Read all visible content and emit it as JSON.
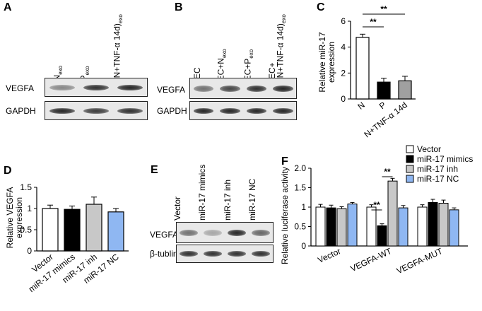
{
  "panels": {
    "A": {
      "letter": "A",
      "lanes": [
        "N",
        "P",
        "(N+TNF-α 14d)"
      ],
      "lane_sub": "exo",
      "rows": [
        "VEGFA",
        "GAPDH"
      ],
      "band_intensity": {
        "VEGFA": [
          0.45,
          0.85,
          0.9
        ],
        "GAPDH": [
          0.9,
          0.8,
          0.85
        ]
      }
    },
    "B": {
      "letter": "B",
      "lane_main": [
        "EC",
        "EC+N",
        "EC+P",
        "EC+",
        "(N+TNF-α 14d)"
      ],
      "lane_sub": "exo",
      "rows": [
        "VEGFA",
        "GAPDH"
      ],
      "band_intensity": {
        "VEGFA": [
          0.55,
          0.75,
          0.85,
          0.9
        ],
        "GAPDH": [
          0.9,
          0.9,
          0.9,
          0.9
        ]
      }
    },
    "E": {
      "letter": "E",
      "lanes": [
        "Vector",
        "miR-17 mimics",
        "miR-17 inh",
        "miR-17 NC"
      ],
      "rows": [
        "VEGFA",
        "β-tublin"
      ],
      "band_intensity": {
        "VEGFA": [
          0.55,
          0.3,
          0.9,
          0.6
        ],
        "β-tublin": [
          0.85,
          0.85,
          0.85,
          0.85
        ]
      }
    }
  },
  "colors": {
    "white": "#ffffff",
    "black": "#000000",
    "gray": "#c8c8c8",
    "blue": "#8fb7f2",
    "darkgray": "#a0a0a0"
  },
  "chart_data": [
    {
      "panel": "C",
      "type": "bar",
      "ylabel": "Relative miR-17 expression",
      "ylabel_lines": [
        "Relative miR-17",
        "expression"
      ],
      "categories": [
        "N",
        "P",
        "N+TNF-α 14d"
      ],
      "values": [
        4.75,
        1.3,
        1.4
      ],
      "errors": [
        0.25,
        0.3,
        0.35
      ],
      "bar_colors": [
        "#ffffff",
        "#000000",
        "#a0a0a0"
      ],
      "ylim": [
        0,
        6
      ],
      "yticks": [
        0,
        2,
        4,
        6
      ],
      "significance": [
        {
          "from": 0,
          "to": 1,
          "label": "**"
        },
        {
          "from": 0,
          "to": 2,
          "label": "**"
        }
      ]
    },
    {
      "panel": "D",
      "type": "bar",
      "ylabel": "Relative VEGFA expression",
      "ylabel_lines": [
        "Relative VEGFA",
        "expression"
      ],
      "categories": [
        "Vector",
        "miR-17 mimics",
        "miR-17 inh",
        "miR-17 NC"
      ],
      "values": [
        1.0,
        0.98,
        1.1,
        0.92
      ],
      "errors": [
        0.08,
        0.08,
        0.17,
        0.08
      ],
      "bar_colors": [
        "#ffffff",
        "#000000",
        "#c8c8c8",
        "#8fb7f2"
      ],
      "ylim": [
        0,
        1.5
      ],
      "yticks": [
        "0",
        "0.5",
        "1",
        "1.5"
      ]
    },
    {
      "panel": "F",
      "type": "bar",
      "ylabel": "Relative luciferase activity",
      "categories": [
        "Vector",
        "VEGFA-WT",
        "VEGFA-MUT"
      ],
      "series": [
        {
          "name": "Vector",
          "color": "#ffffff",
          "values": [
            1.0,
            1.0,
            1.0
          ],
          "errors": [
            0.07,
            0.06,
            0.06
          ]
        },
        {
          "name": "miR-17 mimics",
          "color": "#000000",
          "values": [
            0.98,
            0.52,
            1.12
          ],
          "errors": [
            0.07,
            0.05,
            0.08
          ]
        },
        {
          "name": "miR-17 inh",
          "color": "#c8c8c8",
          "values": [
            0.96,
            1.67,
            1.1
          ],
          "errors": [
            0.05,
            0.07,
            0.08
          ]
        },
        {
          "name": "miR-17 NC",
          "color": "#8fb7f2",
          "values": [
            1.08,
            0.98,
            0.93
          ],
          "errors": [
            0.04,
            0.06,
            0.05
          ]
        }
      ],
      "ylim": [
        0,
        2.0
      ],
      "yticks": [
        "0",
        "0.5",
        "1",
        "1.5",
        "2.0"
      ],
      "significance": [
        {
          "category": 1,
          "from": 0,
          "to": 1,
          "label": "**"
        },
        {
          "category": 1,
          "from": 1,
          "to": 2,
          "label": "**"
        }
      ],
      "legend": "top-right"
    }
  ]
}
